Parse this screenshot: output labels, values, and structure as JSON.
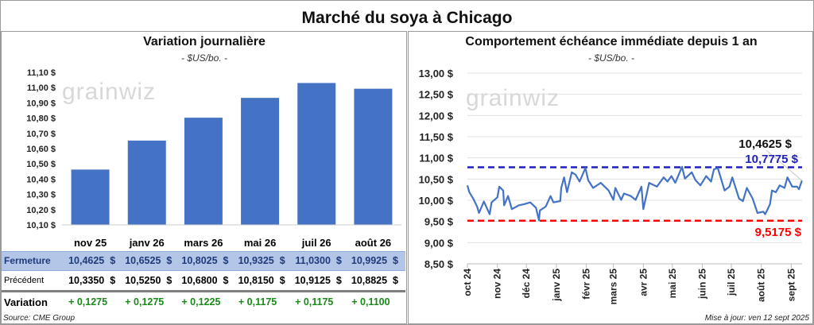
{
  "title": "Marché du soya à Chicago",
  "left": {
    "subtitle": "Variation journalière",
    "unit": "- $US/bo. -",
    "watermark": "grainwiz",
    "source": "Source: CME Group",
    "table": {
      "columns": [
        "nov 25",
        "janv 26",
        "mars 26",
        "mai 26",
        "juil 26",
        "août 26"
      ],
      "rows": [
        {
          "label": "Fermeture",
          "values": [
            "10,4625  $",
            "10,6525  $",
            "10,8025  $",
            "10,9325  $",
            "11,0300  $",
            "10,9925  $"
          ]
        },
        {
          "label": "Précédent",
          "values": [
            "10,3350  $",
            "10,5250  $",
            "10,6800  $",
            "10,8150  $",
            "10,9125  $",
            "10,8825  $"
          ]
        },
        {
          "label": "Variation",
          "values": [
            "+ 0,1275",
            "+ 0,1275",
            "+ 0,1225",
            "+ 0,1175",
            "+ 0,1175",
            "+ 0,1100"
          ]
        }
      ]
    }
  },
  "right": {
    "subtitle": "Comportement échéance immédiate depuis 1 an",
    "unit": "- $US/bo. -",
    "watermark": "grainwiz",
    "updated": "Mise à jour: ven 12 sept 2025"
  },
  "colors": {
    "bar": "#4472c4",
    "line": "#4472c4",
    "high": "#1f1fbf",
    "low": "#ff0000",
    "fermeture_band": "#b4c6e7",
    "variation_positive": "#1a8a1a"
  },
  "chart_data": [
    {
      "type": "bar",
      "categories": [
        "nov 25",
        "janv 26",
        "mars 26",
        "mai 26",
        "juil 26",
        "août 26"
      ],
      "values": [
        10.4625,
        10.6525,
        10.8025,
        10.9325,
        11.03,
        10.9925
      ],
      "ylim": [
        10.1,
        11.1
      ],
      "yticks": [
        "10,10 $",
        "10,20 $",
        "10,30 $",
        "10,40 $",
        "10,50 $",
        "10,60 $",
        "10,70 $",
        "10,80 $",
        "10,90 $",
        "11,00 $",
        "11,10 $"
      ],
      "grid": false
    },
    {
      "type": "line",
      "ylim": [
        8.5,
        13.0
      ],
      "yticks": [
        "8,50 $",
        "9,00 $",
        "9,50 $",
        "10,00 $",
        "10,50 $",
        "11,00 $",
        "11,50 $",
        "12,00 $",
        "12,50 $",
        "13,00 $"
      ],
      "xticks": [
        "oct 24",
        "nov 24",
        "déc 24",
        "janv 25",
        "févr 25",
        "mars 25",
        "avr 25",
        "mai 25",
        "juin 25",
        "juil 25",
        "août 25",
        "sept 25"
      ],
      "xtick_dates": [
        "2024-10-01",
        "2024-11-01",
        "2024-12-01",
        "2025-01-01",
        "2025-02-01",
        "2025-03-01",
        "2025-04-01",
        "2025-05-01",
        "2025-06-01",
        "2025-07-01",
        "2025-08-01",
        "2025-09-01"
      ],
      "grid": true,
      "high": {
        "value": 10.7775,
        "label": "10,7775 $"
      },
      "low": {
        "value": 9.5175,
        "label": "9,5175 $"
      },
      "last": {
        "value": 10.4625,
        "label": "10,4625 $"
      },
      "series": [
        {
          "x": [
            "2024-10-01",
            "2024-10-03",
            "2024-10-07",
            "2024-10-11",
            "2024-10-13",
            "2024-10-18",
            "2024-10-24",
            "2024-10-26",
            "2024-11-01",
            "2024-11-03",
            "2024-11-07",
            "2024-11-08",
            "2024-11-12",
            "2024-11-16",
            "2024-11-23",
            "2024-11-29",
            "2024-12-05",
            "2024-12-11",
            "2024-12-14",
            "2024-12-15",
            "2024-12-21",
            "2024-12-26",
            "2024-12-29",
            "2025-01-05",
            "2025-01-06",
            "2025-01-09",
            "2025-01-12",
            "2025-01-17",
            "2025-01-21",
            "2025-01-25",
            "2025-01-31",
            "2025-02-03",
            "2025-02-08",
            "2025-02-16",
            "2025-02-24",
            "2025-03-01",
            "2025-03-03",
            "2025-03-09",
            "2025-03-12",
            "2025-03-19",
            "2025-03-24",
            "2025-03-30",
            "2025-04-01",
            "2025-04-07",
            "2025-04-15",
            "2025-04-22",
            "2025-04-26",
            "2025-04-30",
            "2025-05-04",
            "2025-05-11",
            "2025-05-14",
            "2025-05-21",
            "2025-05-25",
            "2025-05-30",
            "2025-06-05",
            "2025-06-10",
            "2025-06-13",
            "2025-06-17",
            "2025-06-24",
            "2025-06-29",
            "2025-07-02",
            "2025-07-09",
            "2025-07-13",
            "2025-07-17",
            "2025-07-23",
            "2025-07-28",
            "2025-08-03",
            "2025-08-05",
            "2025-08-10",
            "2025-08-12",
            "2025-08-16",
            "2025-08-20",
            "2025-08-25",
            "2025-08-28",
            "2025-09-02",
            "2025-09-07",
            "2025-09-09",
            "2025-09-12"
          ],
          "y": [
            10.35,
            10.19,
            10.04,
            9.85,
            9.7,
            9.97,
            9.67,
            9.95,
            10.07,
            10.32,
            10.23,
            9.88,
            10.1,
            9.79,
            9.88,
            9.91,
            9.95,
            9.82,
            9.53,
            9.76,
            9.85,
            10.1,
            9.95,
            9.98,
            10.29,
            10.54,
            10.19,
            10.66,
            10.6,
            10.44,
            10.76,
            10.47,
            10.29,
            10.41,
            10.23,
            10.01,
            10.29,
            10.01,
            10.16,
            10.1,
            10.01,
            10.32,
            9.79,
            10.41,
            10.32,
            10.54,
            10.44,
            10.57,
            10.41,
            10.79,
            10.51,
            10.66,
            10.47,
            10.35,
            10.57,
            10.44,
            10.73,
            10.76,
            10.23,
            10.32,
            10.54,
            10.04,
            9.98,
            10.29,
            10.04,
            9.7,
            9.73,
            9.67,
            9.91,
            10.23,
            10.19,
            10.35,
            10.29,
            10.54,
            10.32,
            10.32,
            10.26,
            10.4625
          ]
        }
      ]
    }
  ]
}
